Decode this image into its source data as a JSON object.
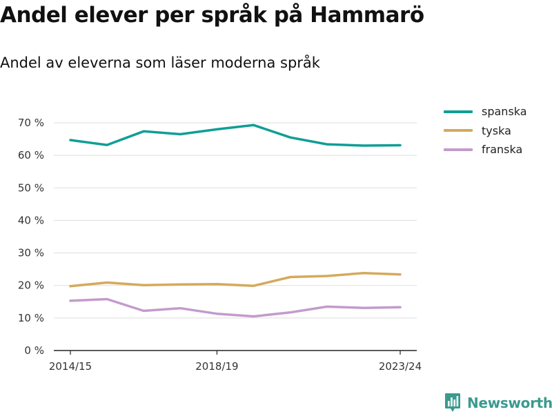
{
  "header": {
    "title": "Andel elever per språk på Hammarö",
    "subtitle": "Andel av eleverna som läser moderna språk"
  },
  "brand": {
    "name": "Newsworthy",
    "icon": "newsworthy-logo-icon",
    "color": "#3a9a8f"
  },
  "chart_data": {
    "type": "line",
    "title": "Andel elever per språk på Hammarö",
    "subtitle": "Andel av eleverna som läser moderna språk",
    "xlabel": "",
    "ylabel": "",
    "x": [
      "2014/15",
      "2015/16",
      "2016/17",
      "2017/18",
      "2018/19",
      "2019/20",
      "2020/21",
      "2021/22",
      "2022/23",
      "2023/24"
    ],
    "x_tick_labels": [
      "2014/15",
      "2018/19",
      "2023/24"
    ],
    "y_tick_labels": [
      "0 %",
      "10 %",
      "20 %",
      "30 %",
      "40 %",
      "50 %",
      "60 %",
      "70 %"
    ],
    "ylim": [
      0,
      70
    ],
    "y_unit": "%",
    "grid": "horizontal",
    "legend_position": "top-right",
    "series": [
      {
        "name": "spanska",
        "color": "#0f9e96",
        "values": [
          64.7,
          63.2,
          67.4,
          66.5,
          68.0,
          69.3,
          65.5,
          63.4,
          63.0,
          63.1
        ]
      },
      {
        "name": "tyska",
        "color": "#d5a95c",
        "values": [
          19.8,
          20.9,
          20.1,
          20.3,
          20.4,
          19.9,
          22.6,
          22.9,
          23.8,
          23.4
        ]
      },
      {
        "name": "franska",
        "color": "#c39bcc",
        "values": [
          15.3,
          15.8,
          12.2,
          13.0,
          11.3,
          10.5,
          11.7,
          13.5,
          13.1,
          13.3
        ]
      }
    ]
  }
}
